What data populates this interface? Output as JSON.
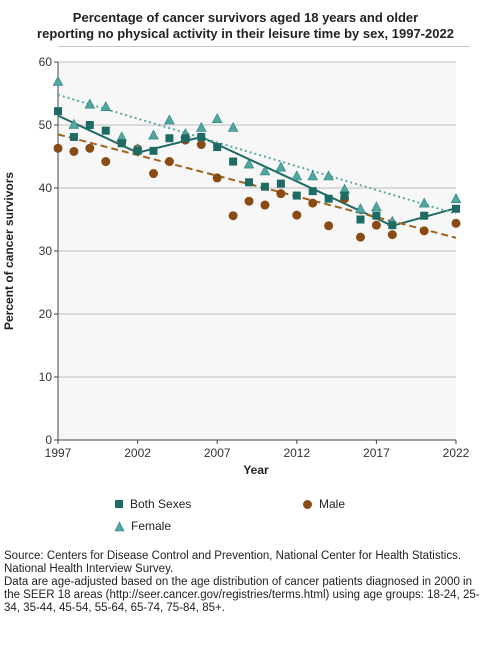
{
  "title_line1": "Percentage of cancer survivors aged 18 years and older",
  "title_line2": "reporting no physical activity in their leisure time by sex, 1997-2022",
  "source_line1": "Source: Centers for Disease Control and Prevention, National Center for Health Statistics. National Health Interview Survey.",
  "source_line2": "Data are age-adjusted based on the age distribution of cancer patients diagnosed in 2000 in the SEER 18 areas (http://seer.cancer.gov/registries/terms.html) using age groups: 18-24, 25-34, 35-44, 45-54, 55-64, 65-74, 75-84, 85+.",
  "colors": {
    "both": "#1e6b66",
    "male": "#8a4a14",
    "male_trend": "#a0621f",
    "female": "#4fa7a0",
    "female_trend": "#5aa9a3"
  },
  "chart_data": {
    "type": "scatter",
    "xlabel": "Year",
    "ylabel": "Percent of cancer survivors",
    "xlim": [
      1997,
      2022
    ],
    "ylim": [
      0,
      60
    ],
    "xticks": [
      1997,
      2002,
      2007,
      2012,
      2017,
      2022
    ],
    "yticks": [
      0,
      10,
      20,
      30,
      40,
      50,
      60
    ],
    "grid": true,
    "legend_position": "bottom",
    "series": [
      {
        "name": "Both Sexes",
        "marker": "square",
        "x": [
          1997,
          1998,
          1999,
          2000,
          2001,
          2002,
          2003,
          2004,
          2005,
          2006,
          2007,
          2008,
          2009,
          2010,
          2011,
          2012,
          2013,
          2014,
          2015,
          2016,
          2017,
          2018,
          2020,
          2022
        ],
        "y": [
          52.2,
          48.1,
          50.0,
          49.1,
          47.1,
          45.9,
          45.9,
          47.9,
          47.9,
          48.1,
          46.5,
          44.2,
          40.9,
          40.2,
          40.7,
          38.8,
          39.5,
          38.3,
          38.8,
          35.0,
          35.6,
          34.1,
          35.6,
          36.7
        ]
      },
      {
        "name": "Male",
        "marker": "circle",
        "x": [
          1997,
          1998,
          1999,
          2000,
          2001,
          2002,
          2003,
          2004,
          2005,
          2006,
          2007,
          2008,
          2009,
          2010,
          2011,
          2012,
          2013,
          2014,
          2015,
          2016,
          2017,
          2018,
          2020,
          2022
        ],
        "y": [
          46.3,
          45.8,
          46.3,
          44.2,
          47.2,
          46.2,
          42.3,
          44.2,
          47.6,
          46.9,
          41.6,
          35.6,
          37.9,
          37.3,
          39.1,
          35.7,
          37.6,
          34.0,
          38.3,
          32.2,
          34.1,
          32.6,
          33.2,
          34.4
        ]
      },
      {
        "name": "Female",
        "marker": "triangle",
        "x": [
          1997,
          1998,
          1999,
          2000,
          2001,
          2002,
          2003,
          2004,
          2005,
          2006,
          2007,
          2008,
          2009,
          2010,
          2011,
          2012,
          2013,
          2014,
          2015,
          2016,
          2017,
          2018,
          2020,
          2022
        ],
        "y": [
          56.9,
          50.1,
          53.3,
          52.9,
          48.1,
          46.2,
          48.4,
          50.8,
          48.6,
          49.6,
          51.0,
          49.6,
          43.8,
          42.7,
          43.3,
          41.9,
          41.9,
          41.9,
          39.8,
          36.7,
          37.0,
          34.7,
          37.6,
          38.3
        ]
      }
    ],
    "trend_lines": [
      {
        "series": "Both Sexes",
        "style": "solid",
        "x": [
          1997,
          2002,
          2006,
          2018,
          2022
        ],
        "y": [
          51.5,
          45.6,
          48.1,
          34.0,
          36.8
        ]
      },
      {
        "series": "Male",
        "style": "dashed",
        "x": [
          1997,
          2022
        ],
        "y": [
          48.5,
          32.1
        ]
      },
      {
        "series": "Female",
        "style": "dotted",
        "x": [
          1997,
          2022
        ],
        "y": [
          54.8,
          35.9
        ]
      }
    ]
  }
}
